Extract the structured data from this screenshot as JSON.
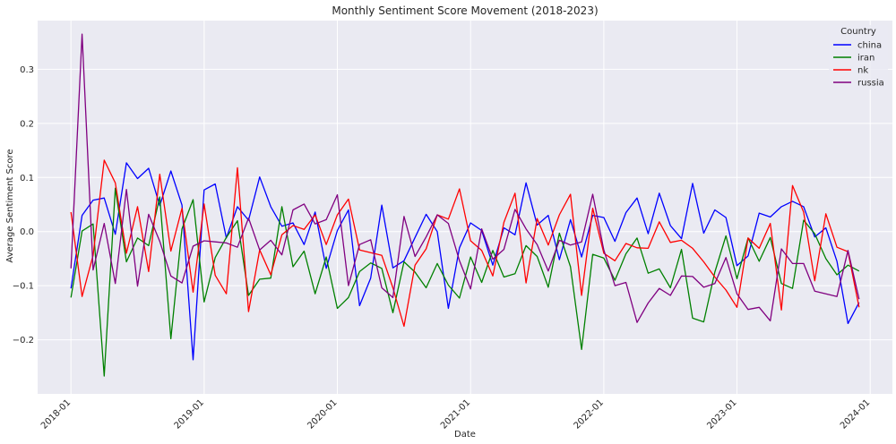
{
  "chart_data": {
    "type": "line",
    "title": "Monthly Sentiment Score Movement (2018-2023)",
    "xlabel": "Date",
    "ylabel": "Average Sentiment Score",
    "x_start": "2018-01",
    "x_end": "2023-12",
    "xlim": [
      "2017-10",
      "2024-03"
    ],
    "ylim": [
      -0.3,
      0.39
    ],
    "x_ticks": [
      "2018-01",
      "2019-01",
      "2020-01",
      "2021-01",
      "2022-01",
      "2023-01",
      "2024-01"
    ],
    "y_ticks": [
      -0.2,
      -0.1,
      0.0,
      0.1,
      0.2,
      0.3
    ],
    "y_tick_labels": [
      "−0.2",
      "−0.1",
      "0.0",
      "0.1",
      "0.2",
      "0.3"
    ],
    "grid": true,
    "legend": {
      "title": "Country",
      "position": "top-right"
    },
    "series": [
      {
        "name": "china",
        "color": "#0000ff",
        "values": [
          -0.105,
          0.03,
          0.058,
          0.062,
          -0.005,
          0.127,
          0.098,
          0.117,
          0.048,
          0.112,
          0.049,
          -0.237,
          0.077,
          0.088,
          -0.012,
          0.046,
          0.021,
          0.101,
          0.046,
          0.01,
          0.016,
          -0.024,
          0.036,
          -0.068,
          0.002,
          0.04,
          -0.137,
          -0.086,
          0.049,
          -0.067,
          -0.054,
          -0.011,
          0.032,
          0.0,
          -0.142,
          -0.03,
          0.016,
          0.002,
          -0.062,
          0.007,
          -0.006,
          0.09,
          0.012,
          0.03,
          -0.052,
          0.022,
          -0.047,
          0.03,
          0.026,
          -0.018,
          0.035,
          0.062,
          -0.004,
          0.071,
          0.011,
          -0.013,
          0.089,
          -0.003,
          0.04,
          0.026,
          -0.063,
          -0.045,
          0.034,
          0.027,
          0.046,
          0.056,
          0.046,
          -0.01,
          0.007,
          -0.055,
          -0.17,
          -0.131
        ]
      },
      {
        "name": "iran",
        "color": "#008000",
        "values": [
          -0.122,
          0.001,
          0.014,
          -0.267,
          0.08,
          -0.056,
          -0.012,
          -0.026,
          0.064,
          -0.198,
          0.005,
          0.059,
          -0.13,
          -0.048,
          -0.011,
          0.02,
          -0.118,
          -0.088,
          -0.086,
          0.046,
          -0.065,
          -0.036,
          -0.115,
          -0.047,
          -0.142,
          -0.122,
          -0.074,
          -0.058,
          -0.068,
          -0.15,
          -0.056,
          -0.075,
          -0.104,
          -0.059,
          -0.099,
          -0.123,
          -0.047,
          -0.094,
          -0.035,
          -0.084,
          -0.078,
          -0.026,
          -0.046,
          -0.103,
          -0.003,
          -0.065,
          -0.218,
          -0.042,
          -0.049,
          -0.09,
          -0.041,
          -0.012,
          -0.077,
          -0.069,
          -0.104,
          -0.033,
          -0.16,
          -0.167,
          -0.075,
          -0.008,
          -0.087,
          -0.012,
          -0.055,
          -0.011,
          -0.096,
          -0.105,
          0.021,
          -0.004,
          -0.05,
          -0.08,
          -0.062,
          -0.073
        ]
      },
      {
        "name": "nk",
        "color": "#ff0000",
        "values": [
          0.036,
          -0.12,
          -0.044,
          0.132,
          0.09,
          -0.04,
          0.046,
          -0.074,
          0.106,
          -0.036,
          0.043,
          -0.112,
          0.051,
          -0.081,
          -0.115,
          0.118,
          -0.148,
          -0.034,
          -0.08,
          -0.006,
          0.011,
          0.004,
          0.031,
          -0.024,
          0.031,
          0.06,
          -0.034,
          -0.039,
          -0.044,
          -0.104,
          -0.175,
          -0.062,
          -0.032,
          0.031,
          0.023,
          0.079,
          -0.017,
          -0.035,
          -0.082,
          0.017,
          0.071,
          -0.095,
          0.024,
          -0.025,
          0.031,
          0.069,
          -0.118,
          0.043,
          -0.04,
          -0.054,
          -0.022,
          -0.03,
          -0.031,
          0.018,
          -0.02,
          -0.016,
          -0.031,
          -0.056,
          -0.084,
          -0.108,
          -0.14,
          -0.012,
          -0.031,
          0.015,
          -0.145,
          0.085,
          0.036,
          -0.091,
          0.033,
          -0.029,
          -0.037,
          -0.14
        ]
      },
      {
        "name": "russia",
        "color": "#800080",
        "values": [
          -0.068,
          0.365,
          -0.071,
          0.015,
          -0.096,
          0.078,
          -0.101,
          0.032,
          -0.018,
          -0.082,
          -0.095,
          -0.027,
          -0.017,
          -0.019,
          -0.021,
          -0.029,
          0.025,
          -0.034,
          -0.016,
          -0.043,
          0.04,
          0.051,
          0.014,
          0.022,
          0.068,
          -0.1,
          -0.024,
          -0.015,
          -0.104,
          -0.122,
          0.028,
          -0.046,
          -0.01,
          0.031,
          0.015,
          -0.054,
          -0.106,
          0.005,
          -0.051,
          -0.033,
          0.041,
          0.005,
          -0.024,
          -0.073,
          -0.016,
          -0.025,
          -0.019,
          0.069,
          -0.034,
          -0.1,
          -0.094,
          -0.168,
          -0.132,
          -0.105,
          -0.118,
          -0.082,
          -0.083,
          -0.103,
          -0.096,
          -0.048,
          -0.115,
          -0.144,
          -0.14,
          -0.165,
          -0.032,
          -0.059,
          -0.059,
          -0.11,
          -0.115,
          -0.12,
          -0.035,
          -0.125
        ]
      }
    ]
  }
}
